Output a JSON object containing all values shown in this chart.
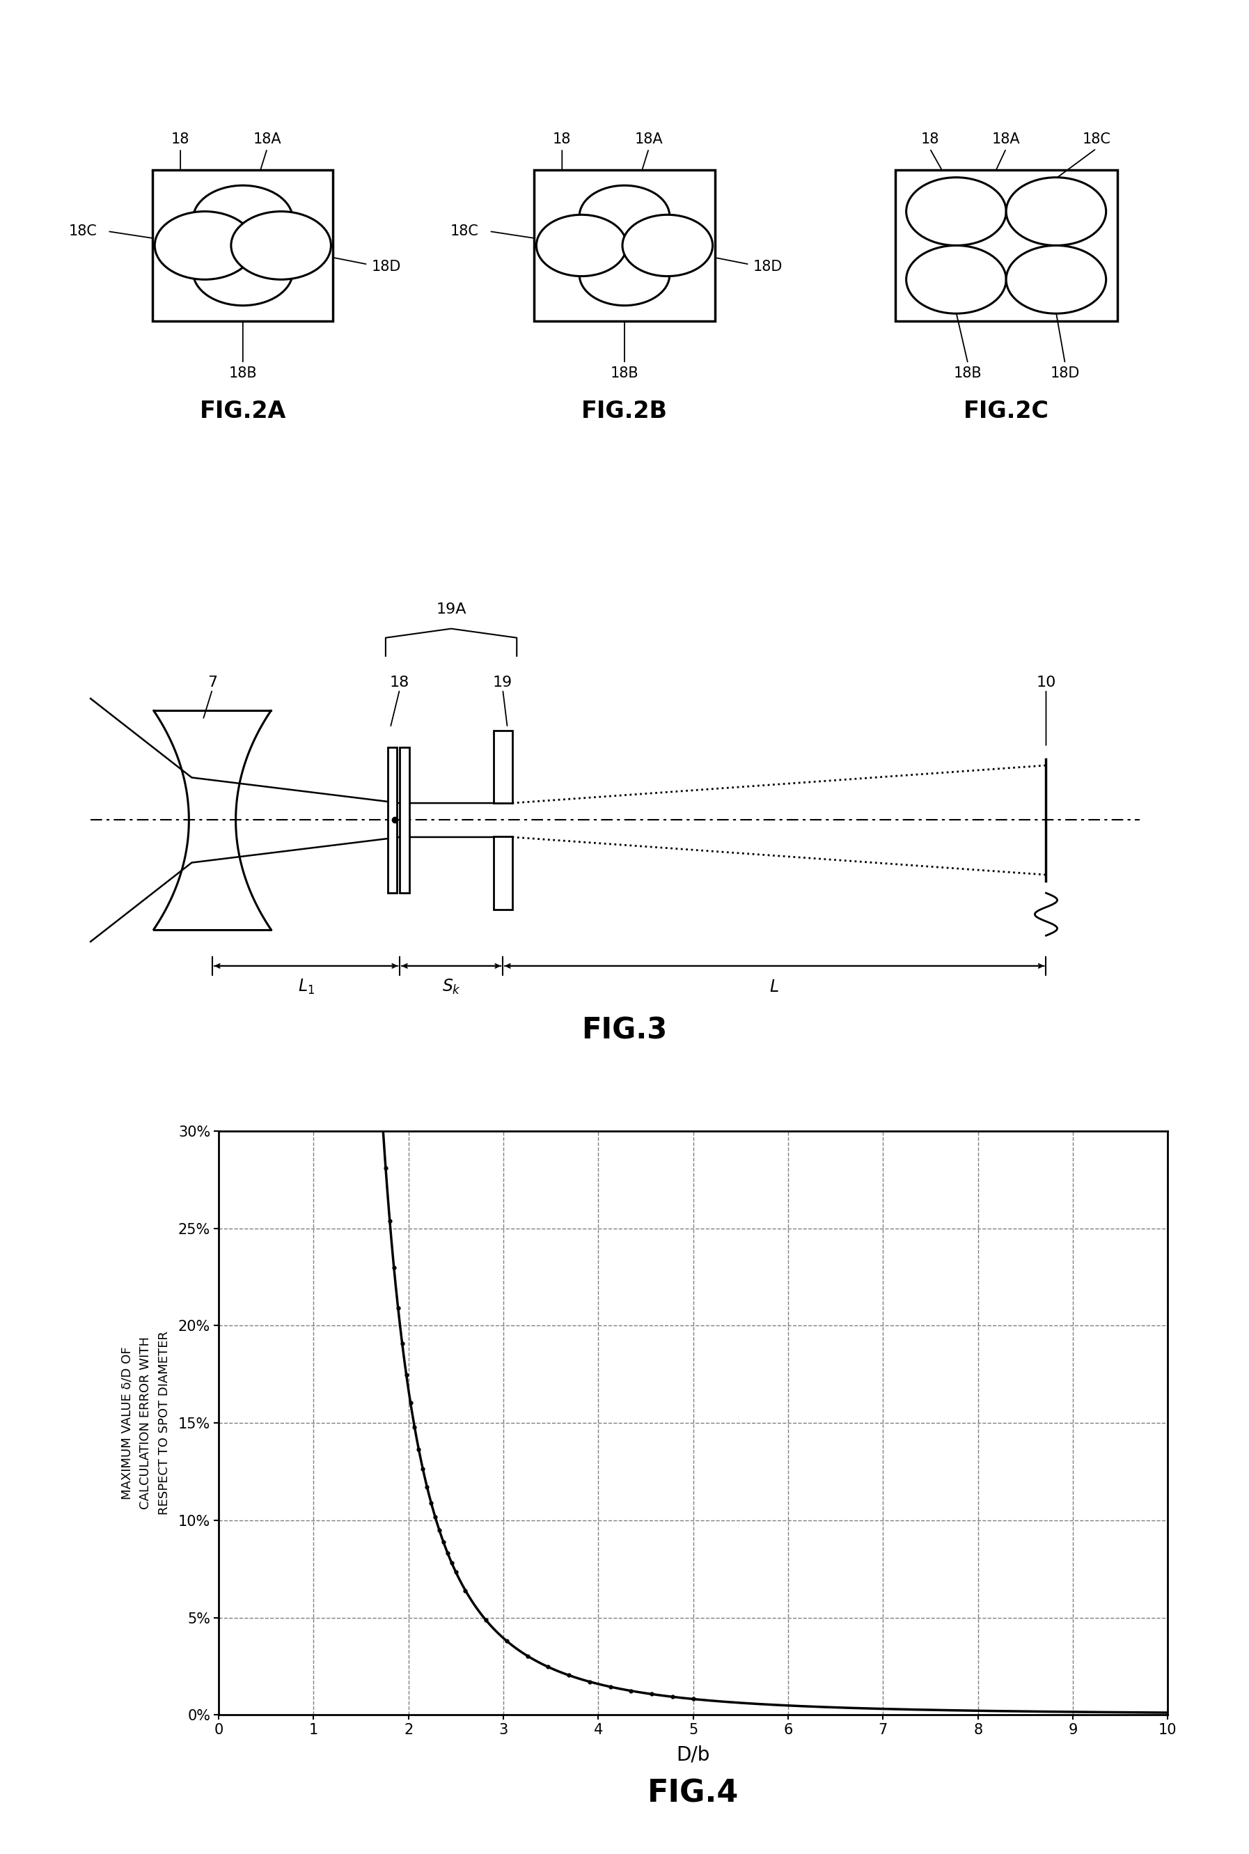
{
  "bg_color": "#ffffff",
  "fig_width": 17.94,
  "fig_height": 26.62,
  "fig2a_label": "FIG.2A",
  "fig2b_label": "FIG.2B",
  "fig2c_label": "FIG.2C",
  "fig3_label": "FIG.3",
  "fig4_label": "FIG.4",
  "ylabel_line1": "MAXIMUM VALUE δ/D OF",
  "ylabel_line2": "CALCULATION ERROR WITH",
  "ylabel_line3": "RESPECT TO SPOT DIAMETER",
  "xlabel": "D/b",
  "ytick_labels": [
    "0%",
    "5%",
    "10%",
    "15%",
    "20%",
    "25%",
    "30%"
  ],
  "ytick_vals": [
    0,
    5,
    10,
    15,
    20,
    25,
    30
  ],
  "xtick_vals": [
    0,
    1,
    2,
    3,
    4,
    5,
    6,
    7,
    8,
    9,
    10
  ]
}
